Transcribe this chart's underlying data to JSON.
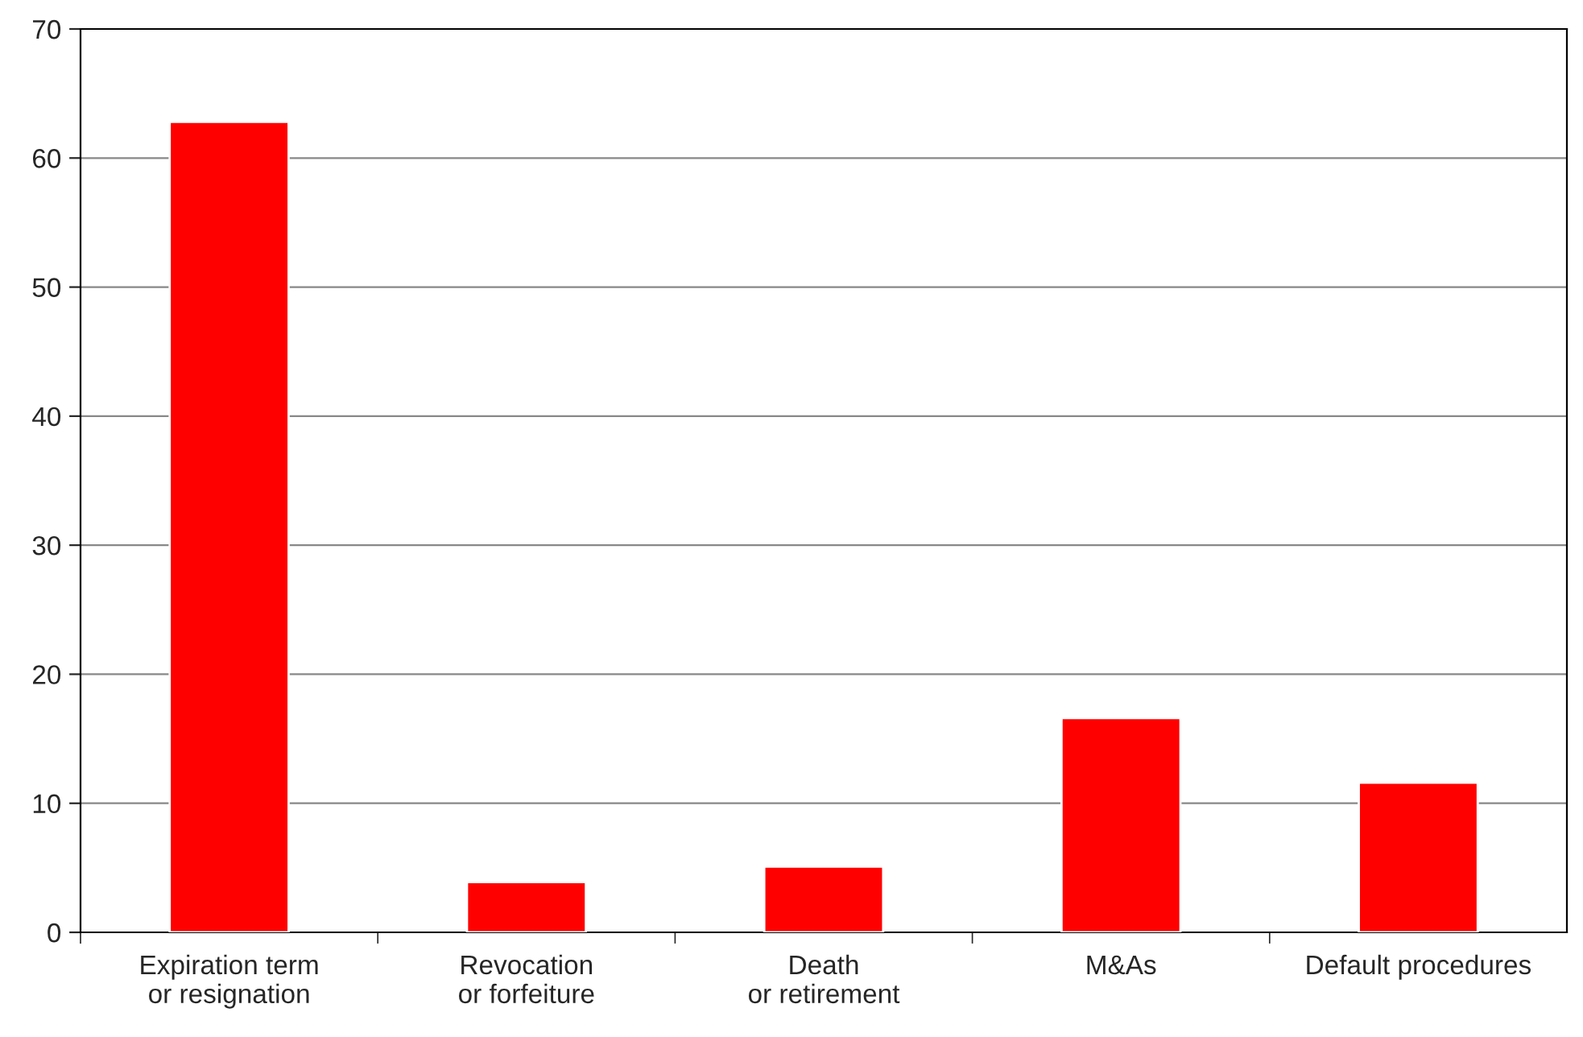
{
  "chart_data": {
    "type": "bar",
    "categories": [
      "Expiration term\nor resignation",
      "Revocation\nor forfeiture",
      "Death\nor retirement",
      "M&As",
      "Default procedures"
    ],
    "values": [
      62.8,
      3.9,
      5.1,
      16.6,
      11.6
    ],
    "color": "#ff0000",
    "ylim": [
      0,
      70
    ],
    "yticks": [
      0,
      10,
      20,
      30,
      40,
      50,
      60,
      70
    ],
    "grid": "y",
    "legend": false
  }
}
